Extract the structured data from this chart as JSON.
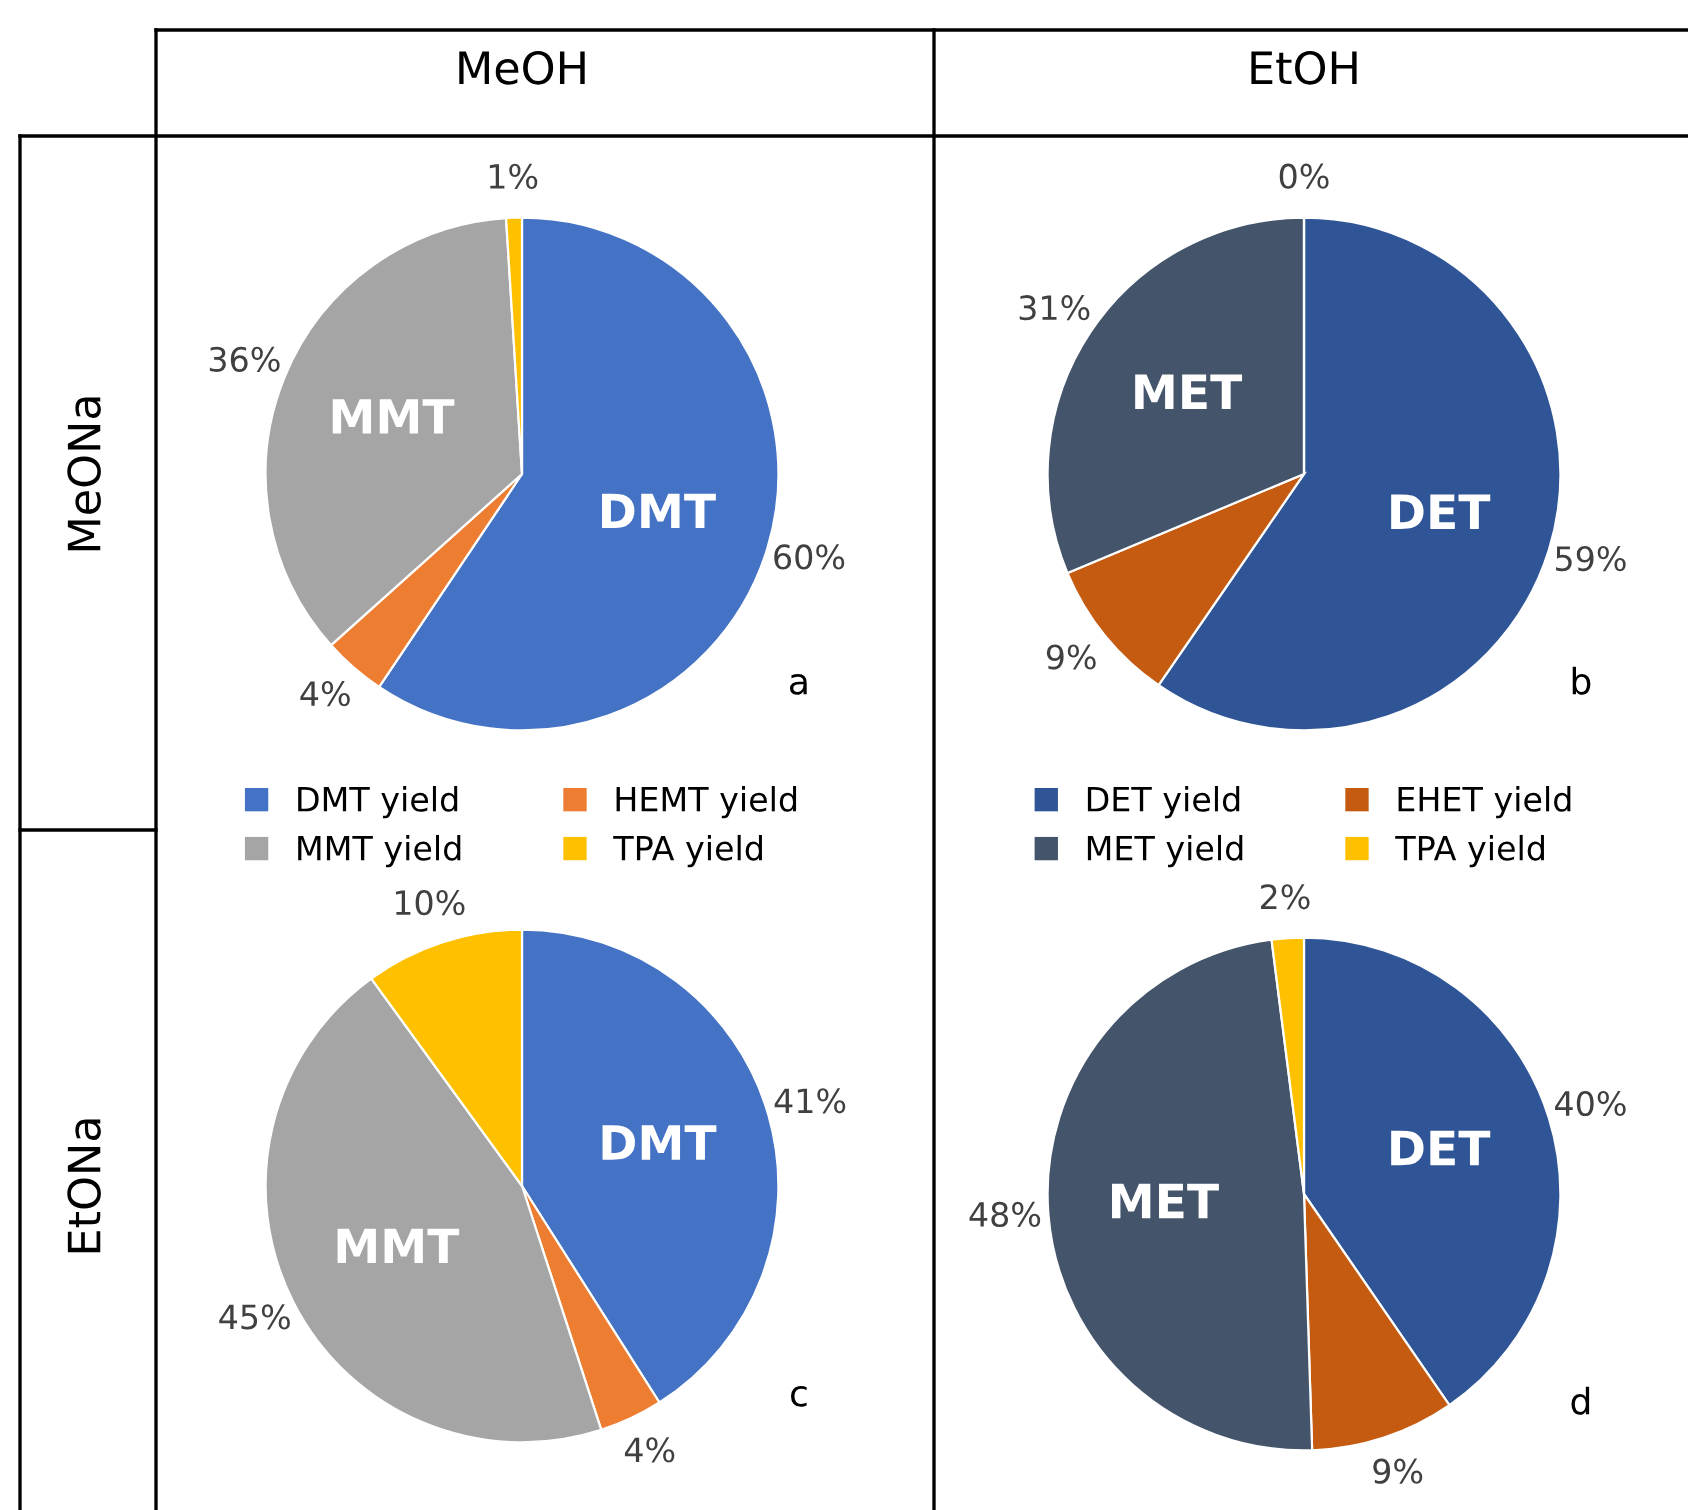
{
  "chart_data": [
    {
      "type": "pie",
      "title": "MeOH",
      "ylabel": "MeONa",
      "categories": [
        "DMT yield",
        "HEMT yield",
        "MMT yield",
        "TPA yield"
      ],
      "values": [
        60,
        4,
        36,
        1
      ],
      "colors": [
        "#4472c4",
        "#ed7d31",
        "#a5a5a5",
        "#ffc000"
      ],
      "value_labels": [
        "60%",
        "4%",
        "36%",
        "1%"
      ],
      "annotations": [
        {
          "text": "DMT",
          "x": "DMT yield"
        },
        {
          "text": "MMT",
          "x": "MMT yield"
        },
        "a"
      ],
      "legend": "bottom"
    },
    {
      "type": "pie",
      "title": "EtOH",
      "categories": [
        "DET yield",
        "EHET yield",
        "MET yield",
        "TPA yield"
      ],
      "values": [
        59,
        9,
        31,
        0
      ],
      "colors": [
        "#2f5597",
        "#c55a11",
        "#44546a",
        "#ffc000"
      ],
      "value_labels": [
        "59%",
        "9%",
        "31%",
        "0%"
      ],
      "annotations": [
        {
          "text": "DET",
          "x": "DET yield"
        },
        {
          "text": "MET",
          "x": "MET yield"
        },
        "b"
      ],
      "legend": "bottom"
    },
    {
      "type": "pie",
      "ylabel": "EtONa",
      "categories": [
        null,
        null,
        null,
        null
      ],
      "values": [
        41,
        4,
        45,
        10
      ],
      "colors": [
        "#4472c4",
        "#ed7d31",
        "#a5a5a5",
        "#ffc000"
      ],
      "value_labels": [
        "41%",
        "4%",
        "45%",
        "10%"
      ],
      "annotations": [
        {
          "text": "DMT",
          "x": "DMT yield"
        },
        {
          "text": "MMT",
          "x": "MMT yield"
        },
        "c"
      ]
    },
    {
      "type": "pie",
      "categories": [
        null,
        null,
        null,
        null
      ],
      "values": [
        40,
        9,
        48,
        2
      ],
      "colors": [
        "#2f5597",
        "#c55a11",
        "#44546a",
        "#ffc000"
      ],
      "value_labels": [
        "40%",
        "9%",
        "48%",
        "2%"
      ],
      "annotations": [
        {
          "text": "DET",
          "x": "DET yield"
        },
        {
          "text": "MET",
          "x": "MET yield"
        },
        "d"
      ]
    }
  ]
}
